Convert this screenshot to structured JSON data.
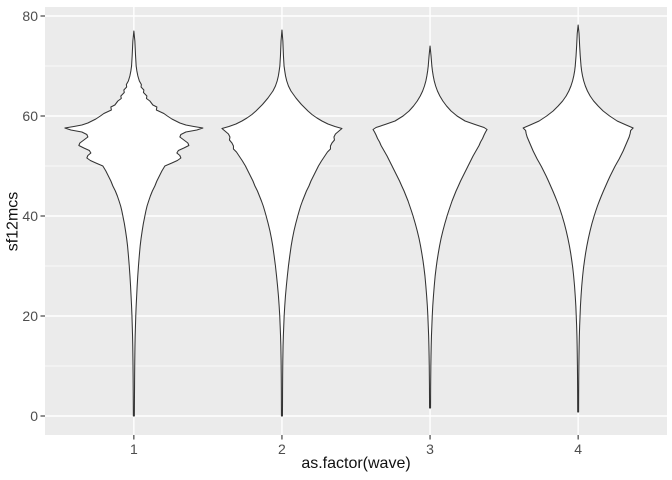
{
  "figure": {
    "background": "#FFFFFF",
    "panel_background": "#EBEBEB",
    "grid_color": "#FFFFFF",
    "violin_outline_color": "#333333",
    "violin_fill": "#FFFFFF",
    "tick_mark_color": "#333333",
    "tick_label_color": "#4D4D4D",
    "axis_title_color": "#111111"
  },
  "chart_data": {
    "type": "violin",
    "title": "",
    "xlabel": "as.factor(wave)",
    "ylabel": "sf12mcs",
    "categories": [
      "1",
      "2",
      "3",
      "4"
    ],
    "category_positions": [
      1,
      2,
      3,
      4
    ],
    "xlim": [
      0.4,
      4.6
    ],
    "ylim": [
      -3.8,
      81.8
    ],
    "y_major_ticks": [
      0,
      20,
      40,
      60,
      80
    ],
    "y_minor_gridlines": [
      10,
      30,
      50,
      70
    ],
    "grid": "on",
    "legend": "none",
    "series": [
      {
        "name": "wave-1",
        "category": "1",
        "position": 1,
        "min_value": 0,
        "max_value": 77,
        "peak_density_value": 57.6,
        "profile": [
          [
            77,
            0
          ],
          [
            75,
            1
          ],
          [
            72,
            1.7
          ],
          [
            70,
            2.3
          ],
          [
            69,
            3
          ],
          [
            68,
            4
          ],
          [
            67,
            5.5
          ],
          [
            66.3,
            7.5
          ],
          [
            65.8,
            7.2
          ],
          [
            65.2,
            10
          ],
          [
            64.7,
            9.6
          ],
          [
            64,
            13
          ],
          [
            63.5,
            12.6
          ],
          [
            63,
            16
          ],
          [
            62.2,
            19
          ],
          [
            61.8,
            23
          ],
          [
            61.2,
            22.5
          ],
          [
            60.5,
            30
          ],
          [
            60,
            33.5
          ],
          [
            59.4,
            38
          ],
          [
            59,
            42
          ],
          [
            58.6,
            46
          ],
          [
            58.2,
            52
          ],
          [
            57.9,
            60
          ],
          [
            57.6,
            69
          ],
          [
            57.2,
            63
          ],
          [
            56.8,
            52
          ],
          [
            56.3,
            47
          ],
          [
            55.8,
            46
          ],
          [
            55.2,
            50
          ],
          [
            54.6,
            54
          ],
          [
            54.1,
            55
          ],
          [
            53.6,
            50
          ],
          [
            53.1,
            44.5
          ],
          [
            52.6,
            43
          ],
          [
            52.1,
            46
          ],
          [
            51.6,
            47
          ],
          [
            51.1,
            43.5
          ],
          [
            50.6,
            38
          ],
          [
            50,
            31
          ],
          [
            49,
            28
          ],
          [
            48,
            25.5
          ],
          [
            47,
            23
          ],
          [
            46,
            21
          ],
          [
            45,
            18.5
          ],
          [
            44,
            16.5
          ],
          [
            43,
            14.8
          ],
          [
            42,
            13.2
          ],
          [
            41,
            12
          ],
          [
            40,
            11
          ],
          [
            38.5,
            9.5
          ],
          [
            37,
            8.3
          ],
          [
            35.5,
            7.2
          ],
          [
            34,
            6.3
          ],
          [
            32,
            5.4
          ],
          [
            30,
            4.6
          ],
          [
            28,
            3.9
          ],
          [
            26,
            3.3
          ],
          [
            24,
            2.8
          ],
          [
            22,
            2.3
          ],
          [
            20,
            1.9
          ],
          [
            18,
            1.6
          ],
          [
            16,
            1.3
          ],
          [
            14,
            1.1
          ],
          [
            11,
            0.9
          ],
          [
            8,
            0.75
          ],
          [
            5,
            0.65
          ],
          [
            2,
            0.55
          ],
          [
            0,
            0.5
          ]
        ]
      },
      {
        "name": "wave-2",
        "category": "2",
        "position": 2,
        "min_value": 0,
        "max_value": 77.2,
        "peak_density_value": 57.5,
        "profile": [
          [
            77.2,
            0
          ],
          [
            75,
            0.9
          ],
          [
            72,
            1.5
          ],
          [
            70,
            2.1
          ],
          [
            69,
            2.8
          ],
          [
            68,
            3.6
          ],
          [
            67,
            4.8
          ],
          [
            66,
            6.5
          ],
          [
            65,
            9
          ],
          [
            64.3,
            11.5
          ],
          [
            63.6,
            14
          ],
          [
            63,
            16.5
          ],
          [
            62.3,
            19.5
          ],
          [
            61.6,
            23
          ],
          [
            61,
            26
          ],
          [
            60.3,
            30
          ],
          [
            59.6,
            35
          ],
          [
            59,
            40
          ],
          [
            58.4,
            46
          ],
          [
            57.9,
            53
          ],
          [
            57.5,
            60
          ],
          [
            57,
            57
          ],
          [
            56.4,
            53.5
          ],
          [
            55.8,
            52
          ],
          [
            55.2,
            52.5
          ],
          [
            54.6,
            50
          ],
          [
            54,
            48.5
          ],
          [
            53.4,
            48.5
          ],
          [
            52.8,
            45.5
          ],
          [
            52.2,
            43.5
          ],
          [
            51.6,
            41.5
          ],
          [
            51,
            39.5
          ],
          [
            50,
            36.5
          ],
          [
            49,
            34
          ],
          [
            48,
            31.5
          ],
          [
            47,
            29
          ],
          [
            46,
            27
          ],
          [
            45,
            24.5
          ],
          [
            44,
            22.5
          ],
          [
            43,
            20.5
          ],
          [
            42,
            18.7
          ],
          [
            41,
            17.2
          ],
          [
            40,
            15.8
          ],
          [
            38.5,
            13.8
          ],
          [
            37,
            12
          ],
          [
            35.5,
            10.5
          ],
          [
            34,
            9.2
          ],
          [
            32,
            7.8
          ],
          [
            30,
            6.5
          ],
          [
            28,
            5.4
          ],
          [
            26,
            4.4
          ],
          [
            24,
            3.5
          ],
          [
            22,
            2.8
          ],
          [
            20,
            2.2
          ],
          [
            18,
            1.8
          ],
          [
            16,
            1.4
          ],
          [
            14,
            1.1
          ],
          [
            11,
            0.85
          ],
          [
            8,
            0.7
          ],
          [
            5,
            0.6
          ],
          [
            2,
            0.55
          ],
          [
            0,
            0.5
          ]
        ]
      },
      {
        "name": "wave-3",
        "category": "3",
        "position": 3,
        "min_value": 1.6,
        "max_value": 74,
        "peak_density_value": 57.3,
        "profile": [
          [
            74,
            0
          ],
          [
            72,
            1
          ],
          [
            70,
            1.8
          ],
          [
            69,
            2.4
          ],
          [
            68,
            3.2
          ],
          [
            67,
            4.2
          ],
          [
            66,
            5.6
          ],
          [
            65,
            7.4
          ],
          [
            64,
            9.8
          ],
          [
            63,
            12.8
          ],
          [
            62,
            16.5
          ],
          [
            61,
            21
          ],
          [
            60,
            27
          ],
          [
            59,
            35
          ],
          [
            58.3,
            45
          ],
          [
            57.7,
            54
          ],
          [
            57.3,
            57
          ],
          [
            56.8,
            55.5
          ],
          [
            56.2,
            54
          ],
          [
            55.5,
            52.5
          ],
          [
            54.8,
            50.5
          ],
          [
            54.1,
            49
          ],
          [
            53.4,
            47
          ],
          [
            52.7,
            45
          ],
          [
            52,
            43
          ],
          [
            51,
            40.5
          ],
          [
            50,
            38
          ],
          [
            49,
            35.5
          ],
          [
            48,
            33
          ],
          [
            47,
            30.5
          ],
          [
            46,
            28.3
          ],
          [
            45,
            26
          ],
          [
            44,
            24
          ],
          [
            43,
            22
          ],
          [
            42,
            20.3
          ],
          [
            41,
            18.6
          ],
          [
            40,
            17
          ],
          [
            38.5,
            14.8
          ],
          [
            37,
            12.8
          ],
          [
            35.5,
            11
          ],
          [
            34,
            9.5
          ],
          [
            32.5,
            8.2
          ],
          [
            31,
            7
          ],
          [
            29.5,
            6
          ],
          [
            28,
            5.1
          ],
          [
            26,
            4.2
          ],
          [
            24,
            3.4
          ],
          [
            22,
            2.7
          ],
          [
            20,
            2.2
          ],
          [
            18,
            1.8
          ],
          [
            16,
            1.4
          ],
          [
            14,
            1.15
          ],
          [
            12,
            0.95
          ],
          [
            10,
            0.8
          ],
          [
            8,
            0.7
          ],
          [
            6,
            0.6
          ],
          [
            4,
            0.55
          ],
          [
            1.6,
            0.5
          ]
        ]
      },
      {
        "name": "wave-4",
        "category": "4",
        "position": 4,
        "min_value": 0.8,
        "max_value": 78.2,
        "peak_density_value": 57.6,
        "profile": [
          [
            78.2,
            0
          ],
          [
            76.5,
            0.9
          ],
          [
            74,
            1.5
          ],
          [
            72,
            2.1
          ],
          [
            70,
            2.9
          ],
          [
            69,
            3.5
          ],
          [
            68,
            4.4
          ],
          [
            67,
            5.6
          ],
          [
            66,
            7.2
          ],
          [
            65,
            9.3
          ],
          [
            64,
            12
          ],
          [
            63,
            15.5
          ],
          [
            62,
            20
          ],
          [
            61,
            25
          ],
          [
            60,
            31.5
          ],
          [
            59,
            39
          ],
          [
            58.2,
            48
          ],
          [
            57.6,
            55
          ],
          [
            57.1,
            52.5
          ],
          [
            56.5,
            52
          ],
          [
            55.8,
            51
          ],
          [
            55.1,
            49.5
          ],
          [
            54.4,
            48
          ],
          [
            53.7,
            46.5
          ],
          [
            53,
            45
          ],
          [
            52.2,
            43
          ],
          [
            51.4,
            41
          ],
          [
            50.6,
            38.7
          ],
          [
            49.8,
            36.5
          ],
          [
            49,
            34.5
          ],
          [
            48,
            32
          ],
          [
            47,
            29.7
          ],
          [
            46,
            27.5
          ],
          [
            45,
            25.3
          ],
          [
            44,
            23.2
          ],
          [
            43,
            21.2
          ],
          [
            42,
            19.3
          ],
          [
            41,
            17.6
          ],
          [
            40,
            16
          ],
          [
            38.5,
            13.8
          ],
          [
            37,
            11.9
          ],
          [
            35.5,
            10.2
          ],
          [
            34,
            8.7
          ],
          [
            32.5,
            7.4
          ],
          [
            31,
            6.3
          ],
          [
            29.5,
            5.3
          ],
          [
            28,
            4.5
          ],
          [
            26,
            3.6
          ],
          [
            24,
            2.9
          ],
          [
            22,
            2.3
          ],
          [
            20,
            1.9
          ],
          [
            18,
            1.5
          ],
          [
            16,
            1.2
          ],
          [
            14,
            1
          ],
          [
            12,
            0.85
          ],
          [
            10,
            0.72
          ],
          [
            8,
            0.62
          ],
          [
            6,
            0.55
          ],
          [
            4,
            0.5
          ],
          [
            2,
            0.47
          ],
          [
            0.8,
            0.45
          ]
        ]
      }
    ]
  }
}
